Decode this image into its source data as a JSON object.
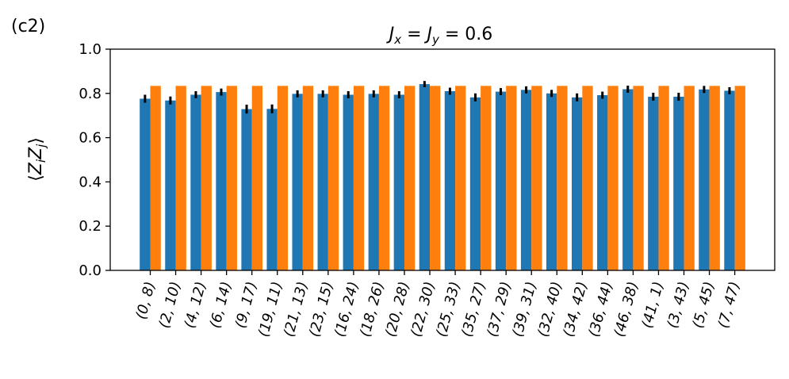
{
  "panel_label": "(c2)",
  "chart_data": {
    "type": "bar",
    "title": "J_x = J_y = 0.6",
    "xlabel": "",
    "ylabel": "⟨Z_i Z_j⟩",
    "ylim": [
      0,
      1.0
    ],
    "yticks": [
      "0.0",
      "0.2",
      "0.4",
      "0.6",
      "0.8",
      "1.0"
    ],
    "grid": false,
    "categories": [
      "(0, 8)",
      "(2, 10)",
      "(4, 12)",
      "(6, 14)",
      "(9, 17)",
      "(19, 11)",
      "(21, 13)",
      "(23, 15)",
      "(16, 24)",
      "(18, 26)",
      "(20, 28)",
      "(22, 30)",
      "(25, 33)",
      "(35, 27)",
      "(37, 29)",
      "(39, 31)",
      "(32, 40)",
      "(34, 42)",
      "(36, 44)",
      "(46, 38)",
      "(41, 1)",
      "(3, 43)",
      "(5, 45)",
      "(7, 47)"
    ],
    "series": [
      {
        "color": "#1f77b4",
        "values": [
          0.776,
          0.768,
          0.794,
          0.806,
          0.729,
          0.73,
          0.798,
          0.798,
          0.794,
          0.798,
          0.794,
          0.842,
          0.81,
          0.782,
          0.808,
          0.816,
          0.8,
          0.782,
          0.792,
          0.819,
          0.785,
          0.785,
          0.818,
          0.812
        ],
        "errors": [
          0.018,
          0.018,
          0.016,
          0.016,
          0.02,
          0.02,
          0.016,
          0.016,
          0.016,
          0.016,
          0.016,
          0.014,
          0.016,
          0.018,
          0.016,
          0.016,
          0.016,
          0.018,
          0.016,
          0.016,
          0.018,
          0.018,
          0.016,
          0.016
        ]
      },
      {
        "color": "#ff7f0e",
        "values": [
          0.834,
          0.834,
          0.834,
          0.834,
          0.834,
          0.834,
          0.834,
          0.834,
          0.834,
          0.834,
          0.834,
          0.834,
          0.834,
          0.834,
          0.834,
          0.834,
          0.834,
          0.834,
          0.834,
          0.834,
          0.834,
          0.834,
          0.834,
          0.834
        ]
      }
    ]
  }
}
